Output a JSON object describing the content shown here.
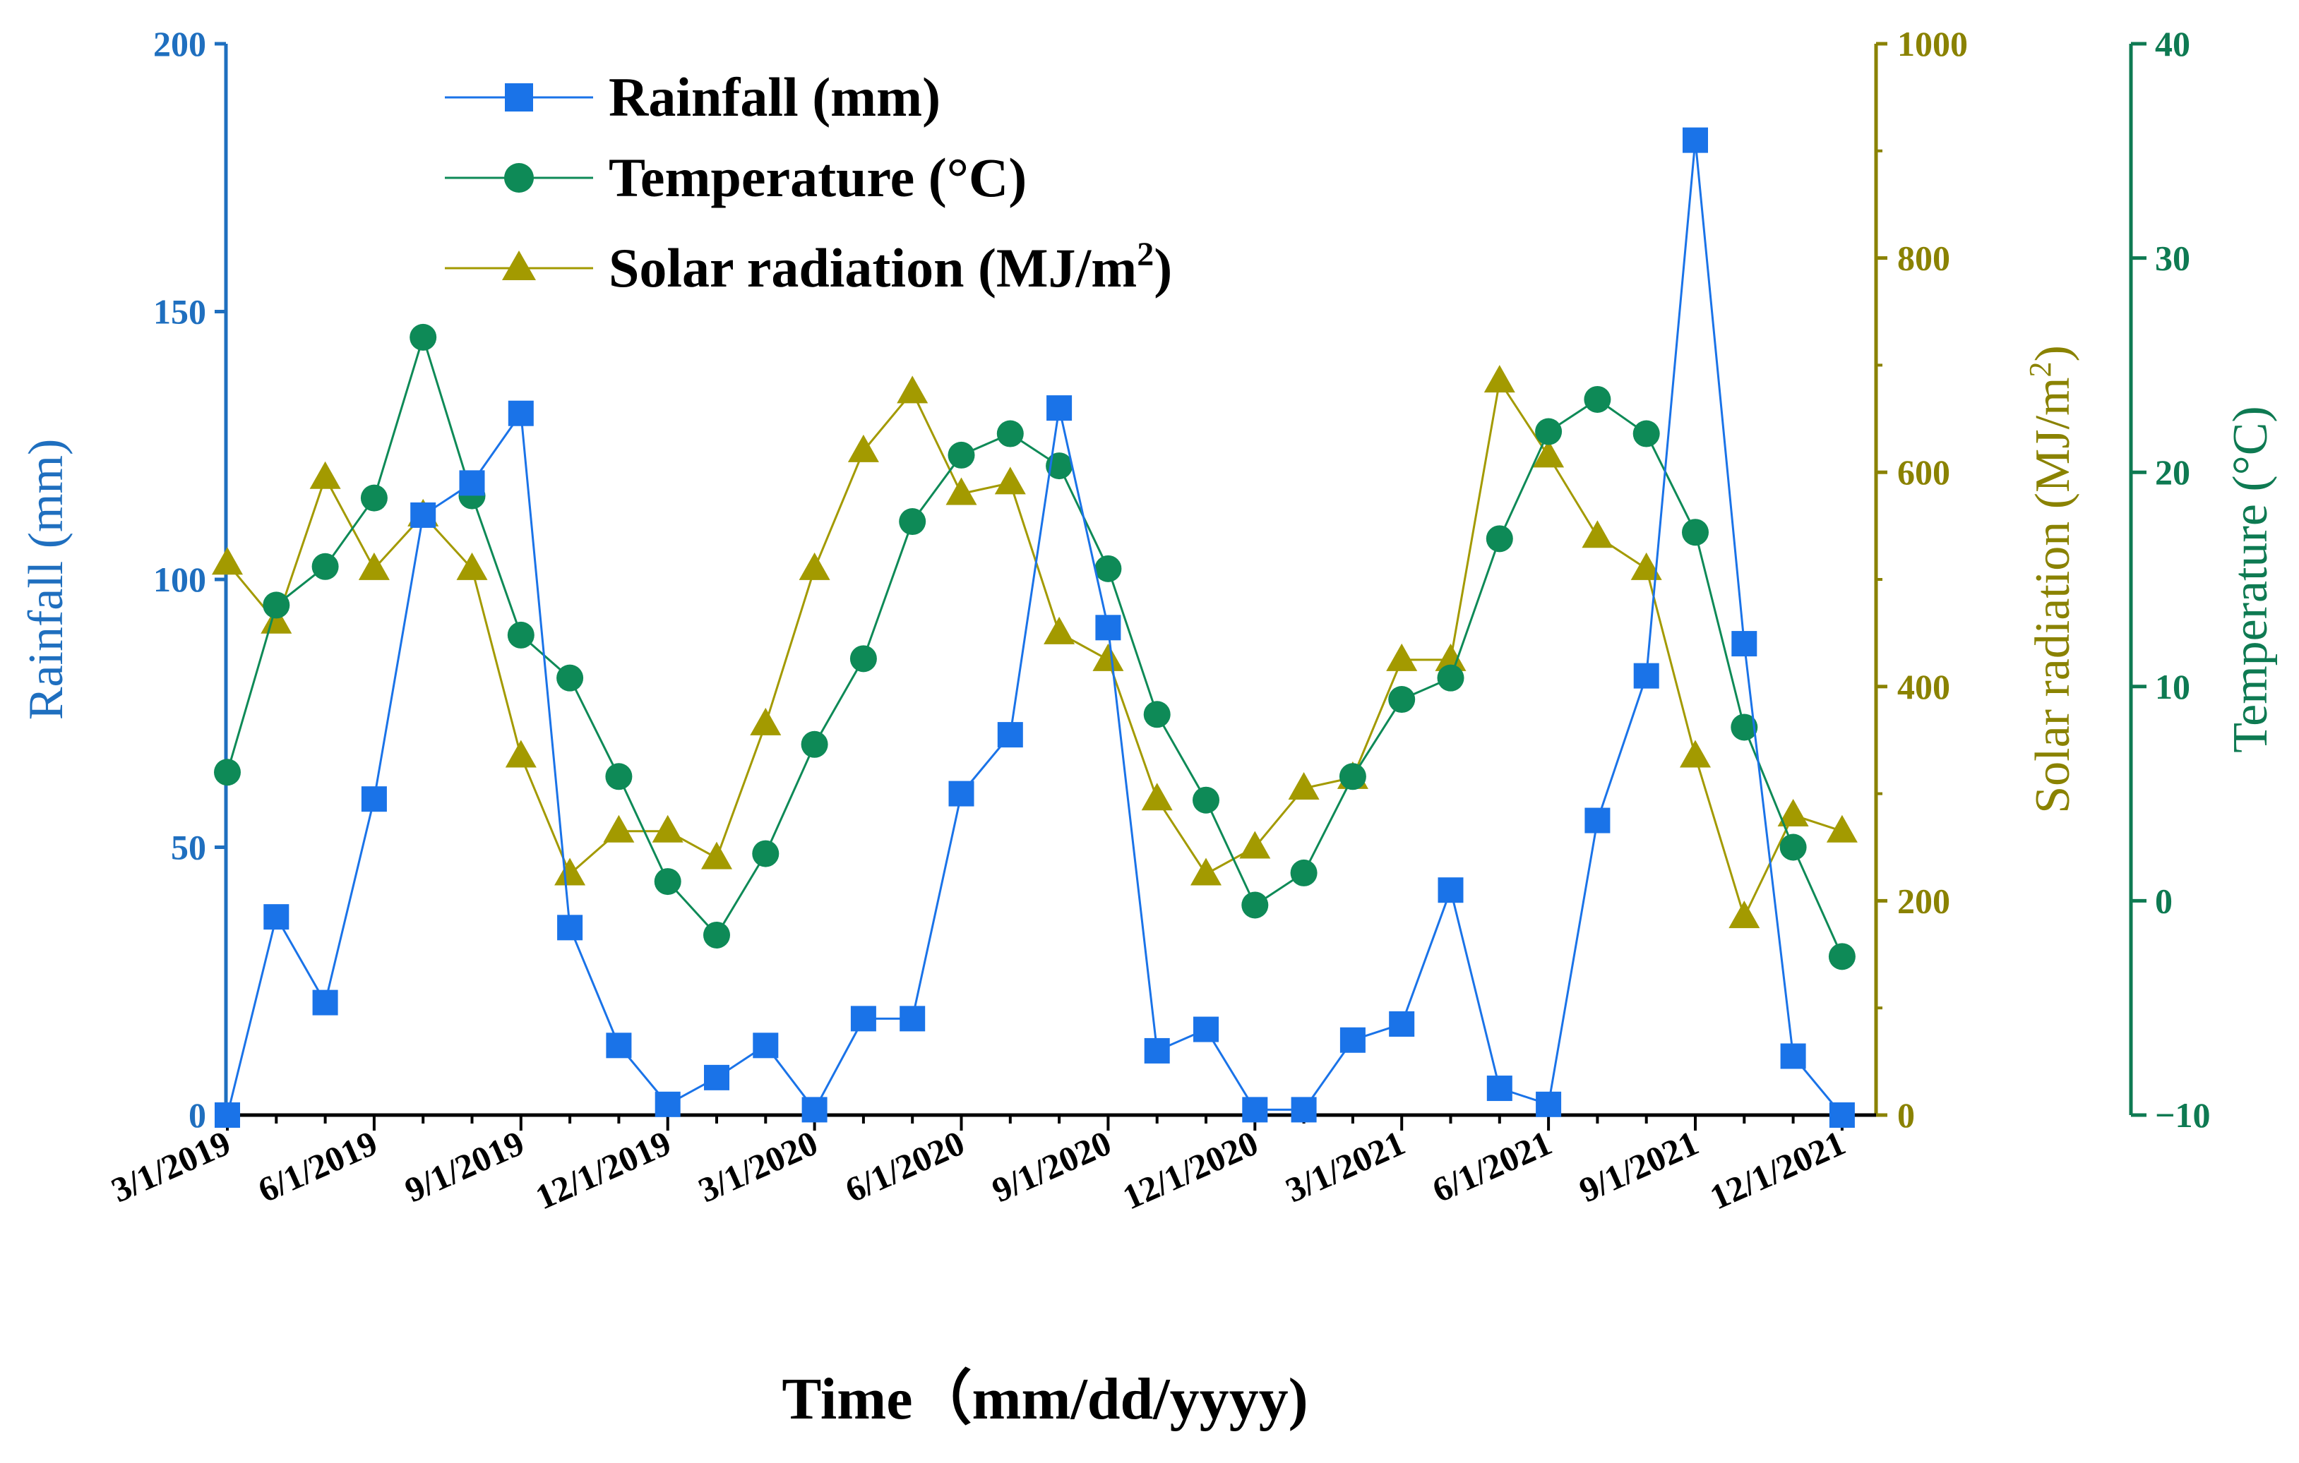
{
  "chart_data": {
    "type": "line",
    "title": "",
    "xlabel": "Time（mm/dd/yyyy)",
    "x_tick_labels": [
      "3/1/2019",
      "6/1/2019",
      "9/1/2019",
      "12/1/2019",
      "3/1/2020",
      "6/1/2020",
      "9/1/2020",
      "12/1/2020",
      "3/1/2021",
      "6/1/2021",
      "9/1/2021",
      "12/1/2021"
    ],
    "months": [
      "2019-03",
      "2019-04",
      "2019-05",
      "2019-06",
      "2019-07",
      "2019-08",
      "2019-09",
      "2019-10",
      "2019-11",
      "2019-12",
      "2020-01",
      "2020-02",
      "2020-03",
      "2020-04",
      "2020-05",
      "2020-06",
      "2020-07",
      "2020-08",
      "2020-09",
      "2020-10",
      "2020-11",
      "2020-12",
      "2021-01",
      "2021-02",
      "2021-03",
      "2021-04",
      "2021-05",
      "2021-06",
      "2021-07",
      "2021-08",
      "2021-09",
      "2021-10",
      "2021-11",
      "2021-12"
    ],
    "axes": {
      "left": {
        "label": "Rainfall (mm)",
        "ylim": [
          0,
          200
        ],
        "ticks": [
          "0",
          "50",
          "100",
          "150",
          "200"
        ],
        "color": "#1f6fbf"
      },
      "right_inner": {
        "label_main": "Solar radiation (MJ/m",
        "label_sup": "2",
        "label_end": ")",
        "ylim": [
          0,
          1000
        ],
        "ticks": [
          "0",
          "200",
          "400",
          "600",
          "800",
          "1000"
        ],
        "color": "#8a8200"
      },
      "right_outer": {
        "label": "Temperature (°C)",
        "ylim": [
          -10,
          40
        ],
        "ticks": [
          "−10",
          "0",
          "10",
          "20",
          "30",
          "40"
        ],
        "color": "#0e7a52"
      }
    },
    "series": [
      {
        "name": "Rainfall (mm)",
        "axis": "left",
        "marker": "square",
        "color": "#1a73e8",
        "values": [
          0,
          37,
          21,
          59,
          112,
          118,
          131,
          35,
          13,
          2,
          7,
          13,
          1,
          18,
          18,
          60,
          71,
          132,
          91,
          12,
          16,
          1,
          1,
          14,
          17,
          42,
          5,
          2,
          55,
          82,
          182,
          88,
          11,
          0
        ]
      },
      {
        "name": "Temperature (°C)",
        "axis": "right_outer",
        "marker": "circle",
        "color": "#0e8a57",
        "values": [
          6,
          13.8,
          15.6,
          18.8,
          26.3,
          18.9,
          12.4,
          10.4,
          5.8,
          0.9,
          -1.6,
          2.2,
          7.3,
          11.3,
          17.7,
          20.8,
          21.8,
          20.3,
          15.5,
          8.7,
          4.7,
          -0.2,
          1.3,
          5.8,
          9.4,
          10.4,
          16.9,
          21.9,
          23.4,
          21.8,
          17.2,
          8.1,
          2.5,
          -2.6
        ]
      },
      {
        "name": "Solar radiation (MJ/m²)",
        "axis": "right_inner",
        "marker": "triangle",
        "color": "#a39a00",
        "values": [
          515,
          460,
          595,
          510,
          560,
          510,
          335,
          225,
          265,
          265,
          240,
          365,
          510,
          620,
          675,
          580,
          590,
          450,
          425,
          295,
          225,
          250,
          305,
          315,
          425,
          425,
          685,
          615,
          540,
          510,
          335,
          185,
          280,
          265
        ]
      }
    ],
    "legend": {
      "position": "top-left",
      "entries": [
        {
          "label": "Rainfall (mm)"
        },
        {
          "label": "Temperature (°C)"
        },
        {
          "label_main": "Solar radiation (MJ/m",
          "label_sup": "2",
          "label_end": ")"
        }
      ]
    },
    "grid": false
  }
}
